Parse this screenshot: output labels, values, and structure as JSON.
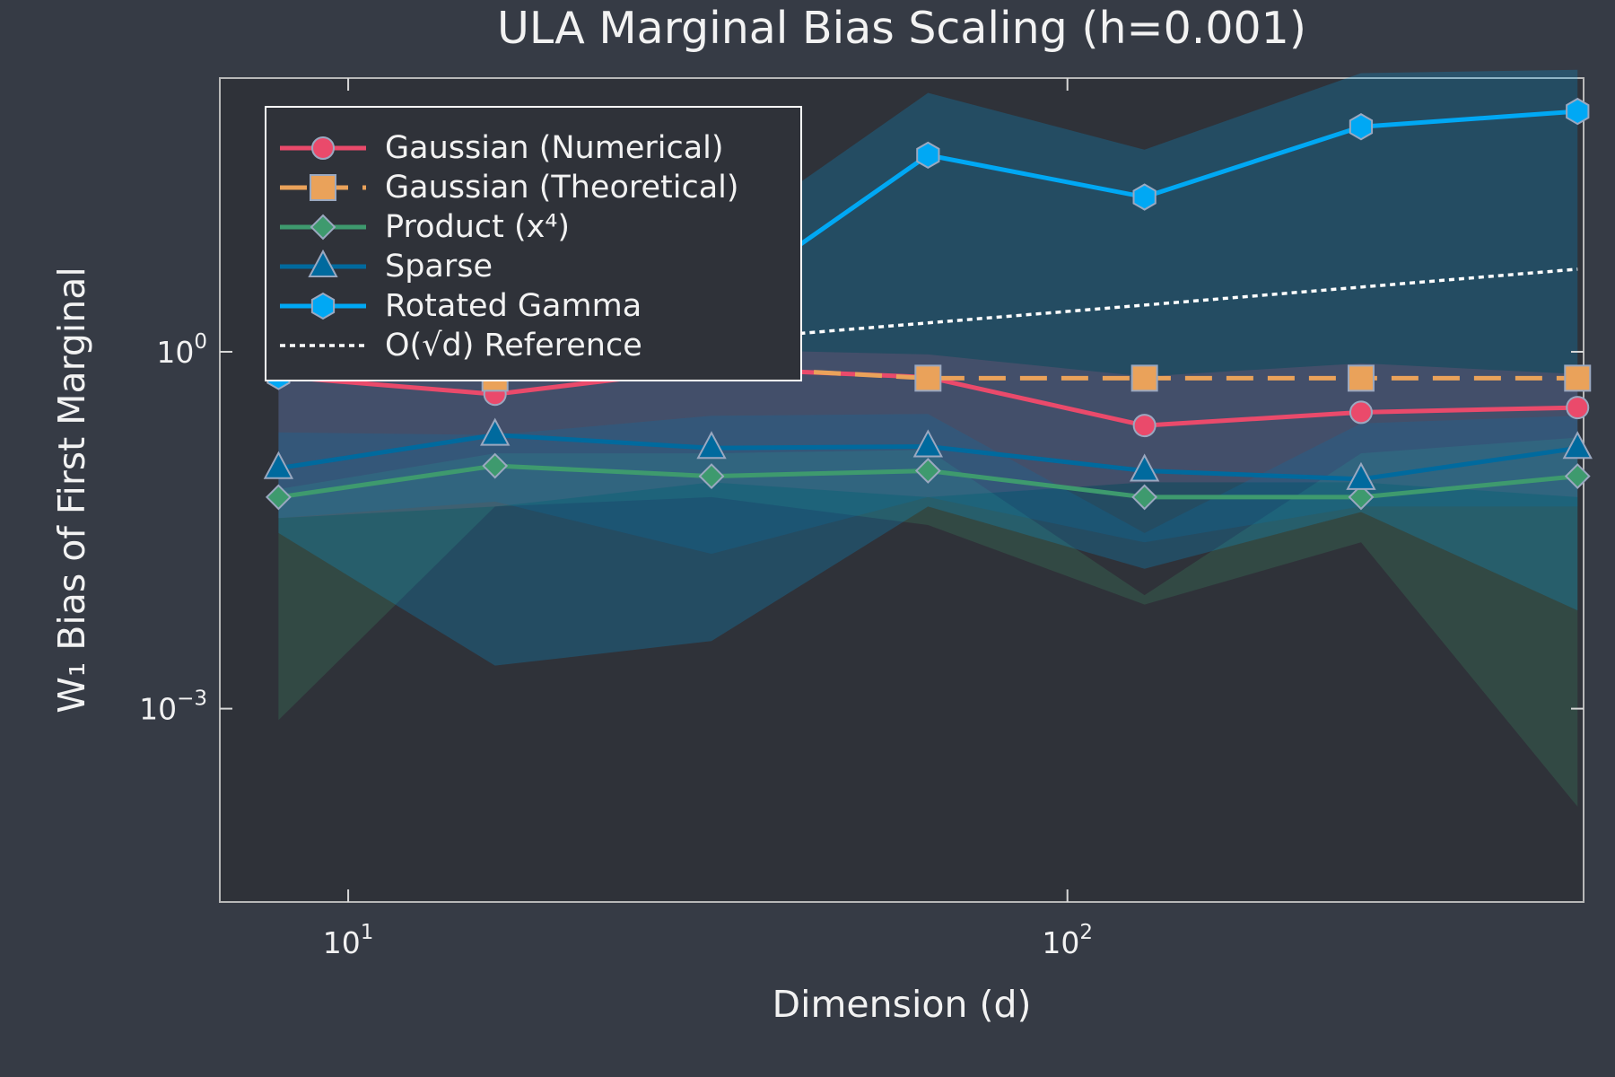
{
  "chart_data": {
    "type": "line",
    "title": "ULA Marginal Bias Scaling (h=0.001)",
    "xlabel": "Dimension (d)",
    "ylabel": "W₁ Bias of First Marginal",
    "xscale": "log",
    "yscale": "log",
    "xlim": [
      6.63,
      522
    ],
    "ylim": [
      2.37e-05,
      200
    ],
    "xticks": [
      {
        "value": 10,
        "base": "10",
        "exp": "1"
      },
      {
        "value": 100,
        "base": "10",
        "exp": "2"
      }
    ],
    "yticks": [
      {
        "value": 1,
        "base": "10",
        "exp": "0"
      },
      {
        "value": 0.001,
        "base": "10",
        "exp": "−3"
      }
    ],
    "grid": false,
    "legend_position": "top-left",
    "x": [
      8,
      16,
      32,
      64,
      128,
      256,
      512
    ],
    "series": [
      {
        "name": "Gaussian (Numerical)",
        "color": "#ea4a6b",
        "linestyle": "solid",
        "marker": "circle",
        "values": [
          0.62,
          0.44,
          0.73,
          0.61,
          0.24,
          0.31,
          0.34
        ],
        "band_lower": [
          0.04,
          0.05,
          0.08,
          0.06,
          0.08,
          0.08,
          0.06
        ],
        "band_upper": [
          0.62,
          0.75,
          1.05,
          0.95,
          0.62,
          0.8,
          0.65
        ]
      },
      {
        "name": "Gaussian (Theoretical)",
        "color": "#eaa25a",
        "linestyle": "dashed",
        "marker": "square",
        "values": [
          0.85,
          0.6,
          0.75,
          0.6,
          0.6,
          0.6,
          0.6
        ]
      },
      {
        "name": "Product (x⁴)",
        "color": "#3e9a6e",
        "linestyle": "solid",
        "marker": "diamond",
        "values": [
          0.06,
          0.11,
          0.09,
          0.1,
          0.06,
          0.06,
          0.09
        ],
        "band_lower": [
          0.0008,
          0.05,
          0.06,
          0.035,
          0.0075,
          0.025,
          0.00015
        ],
        "band_upper": [
          0.07,
          0.14,
          0.14,
          0.15,
          0.009,
          0.14,
          0.19
        ]
      },
      {
        "name": "Sparse",
        "color": "#006a9e",
        "linestyle": "solid",
        "marker": "triangle",
        "values": [
          0.105,
          0.2,
          0.155,
          0.16,
          0.1,
          0.085,
          0.155
        ],
        "band_lower": [
          0.04,
          0.055,
          0.02,
          0.06,
          0.025,
          0.05,
          0.05
        ],
        "band_upper": [
          0.21,
          0.2,
          0.29,
          0.3,
          0.03,
          0.25,
          0.29
        ]
      },
      {
        "name": "Rotated Gamma",
        "color": "#00a8f4",
        "linestyle": "solid",
        "marker": "hexagon",
        "values": [
          0.62,
          1.45,
          2.4,
          45,
          20,
          78,
          105
        ],
        "band_lower": [
          0.03,
          0.0023,
          0.0037,
          0.05,
          0.015,
          0.045,
          0.0067
        ],
        "band_upper": [
          0.62,
          1.45,
          8,
          150,
          50,
          220,
          235
        ]
      },
      {
        "name": "O(√d) Reference",
        "color": "#ffffff",
        "linestyle": "dotted",
        "marker": "none",
        "values": [
          0.62,
          0.875,
          1.24,
          1.75,
          2.47,
          3.5,
          4.95
        ]
      }
    ]
  }
}
